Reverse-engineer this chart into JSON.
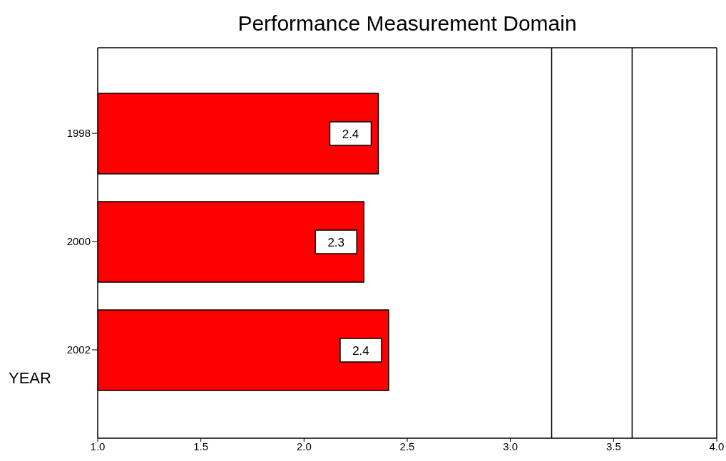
{
  "chart_data": {
    "type": "bar",
    "orientation": "horizontal",
    "title": "Performance Measurement Domain",
    "ylabel": "YEAR",
    "categories": [
      "1998",
      "2000",
      "2002"
    ],
    "values": [
      2.36,
      2.29,
      2.41
    ],
    "value_labels": [
      "2.4",
      "2.3",
      "2.4"
    ],
    "color": "#ff0000",
    "xlim": [
      1.0,
      4.0
    ],
    "xticks": [
      {
        "value": 1.0,
        "label": "1.0"
      },
      {
        "value": 1.5,
        "label": "1.5"
      },
      {
        "value": 2.0,
        "label": "2.0"
      },
      {
        "value": 2.5,
        "label": "2.5"
      },
      {
        "value": 3.0,
        "label": "3.0"
      },
      {
        "value": 3.5,
        "label": "3.5"
      },
      {
        "value": 4.0,
        "label": "4.0"
      }
    ],
    "ref_lines": [
      {
        "axis": "x",
        "value": 3.2,
        "color": "#000000"
      },
      {
        "axis": "x",
        "value": 3.59,
        "color": "#000000"
      }
    ],
    "grid": false
  }
}
